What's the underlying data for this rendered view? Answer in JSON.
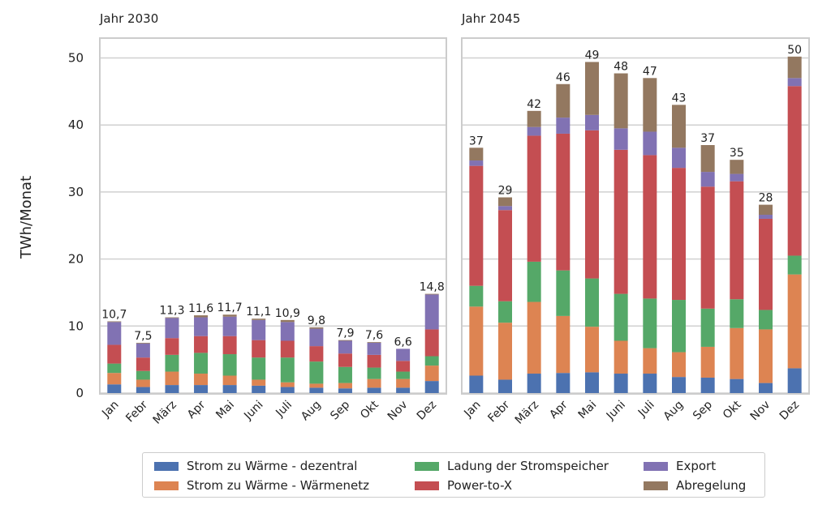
{
  "y_axis_label": "TWh/Monat",
  "y_ticks": [
    "0",
    "10",
    "20",
    "30",
    "40",
    "50"
  ],
  "colors": {
    "Strom zu Wärme - dezentral": "#4c72b0",
    "Strom zu Wärme - Wärmenetz": "#dd8452",
    "Ladung der Stromspeicher": "#55a868",
    "Power-to-X": "#c44e52",
    "Export": "#8172b3",
    "Abregelung": "#937860"
  },
  "legend": [
    "Strom zu Wärme - dezentral",
    "Strom zu Wärme - Wärmenetz",
    "Ladung der Stromspeicher",
    "Power-to-X",
    "Export",
    "Abregelung"
  ],
  "chart_data": [
    {
      "type": "bar",
      "stacked": true,
      "title": "Jahr 2030",
      "ylabel": "TWh/Monat",
      "ylim": [
        0,
        52
      ],
      "grid": true,
      "categories": [
        "Jan",
        "Febr",
        "März",
        "Apr",
        "Mai",
        "Juni",
        "Juli",
        "Aug",
        "Sep",
        "Okt",
        "Nov",
        "Dez"
      ],
      "totals_labels": [
        "10,7",
        "7,5",
        "11,3",
        "11,6",
        "11,7",
        "11,1",
        "10,9",
        "9,8",
        "7,9",
        "7,6",
        "6,6",
        "14,8"
      ],
      "series": [
        {
          "name": "Strom zu Wärme - dezentral",
          "values": [
            1.3,
            0.9,
            1.2,
            1.2,
            1.2,
            1.1,
            0.9,
            0.8,
            0.7,
            0.8,
            0.8,
            1.8
          ]
        },
        {
          "name": "Strom zu Wärme - Wärmenetz",
          "values": [
            1.7,
            1.1,
            2.0,
            1.7,
            1.4,
            0.9,
            0.7,
            0.6,
            0.8,
            1.3,
            1.3,
            2.3
          ]
        },
        {
          "name": "Ladung der Stromspeicher",
          "values": [
            1.4,
            1.3,
            2.5,
            3.1,
            3.2,
            3.3,
            3.7,
            3.3,
            2.4,
            1.7,
            1.1,
            1.4
          ]
        },
        {
          "name": "Power-to-X",
          "values": [
            2.8,
            2.0,
            2.5,
            2.5,
            2.7,
            2.6,
            2.5,
            2.3,
            2.0,
            1.9,
            1.6,
            4.0
          ]
        },
        {
          "name": "Export",
          "values": [
            3.4,
            2.1,
            3.0,
            2.8,
            2.9,
            3.0,
            2.8,
            2.6,
            1.9,
            1.8,
            1.8,
            5.2
          ]
        },
        {
          "name": "Abregelung",
          "values": [
            0.1,
            0.1,
            0.1,
            0.3,
            0.3,
            0.2,
            0.3,
            0.2,
            0.1,
            0.1,
            0.0,
            0.1
          ]
        }
      ]
    },
    {
      "type": "bar",
      "stacked": true,
      "title": "Jahr 2045",
      "ylabel": "TWh/Monat",
      "ylim": [
        0,
        52
      ],
      "grid": true,
      "categories": [
        "Jan",
        "Febr",
        "März",
        "Apr",
        "Mai",
        "Juni",
        "Juli",
        "Aug",
        "Sep",
        "Okt",
        "Nov",
        "Dez"
      ],
      "totals_labels": [
        "37",
        "29",
        "42",
        "46",
        "49",
        "48",
        "47",
        "43",
        "37",
        "35",
        "28",
        "50"
      ],
      "series": [
        {
          "name": "Strom zu Wärme - dezentral",
          "values": [
            2.6,
            2.0,
            2.9,
            3.0,
            3.1,
            2.9,
            2.9,
            2.4,
            2.3,
            2.1,
            1.5,
            3.7
          ]
        },
        {
          "name": "Strom zu Wärme - Wärmenetz",
          "values": [
            10.3,
            8.5,
            10.7,
            8.5,
            6.8,
            4.9,
            3.8,
            3.7,
            4.6,
            7.6,
            8.0,
            14.0
          ]
        },
        {
          "name": "Ladung der Stromspeicher",
          "values": [
            3.1,
            3.2,
            6.0,
            6.8,
            7.2,
            7.0,
            7.4,
            7.8,
            5.7,
            4.3,
            2.9,
            2.8
          ]
        },
        {
          "name": "Power-to-X",
          "values": [
            17.9,
            13.6,
            18.8,
            20.4,
            22.1,
            21.5,
            21.4,
            19.7,
            18.2,
            17.6,
            13.6,
            25.3
          ]
        },
        {
          "name": "Export",
          "values": [
            0.8,
            0.6,
            1.3,
            2.4,
            2.3,
            3.2,
            3.5,
            3.0,
            2.2,
            1.1,
            0.6,
            1.2
          ]
        },
        {
          "name": "Abregelung",
          "values": [
            1.9,
            1.3,
            2.4,
            5.0,
            7.9,
            8.2,
            8.0,
            6.4,
            4.0,
            2.1,
            1.5,
            3.2
          ]
        }
      ]
    }
  ]
}
